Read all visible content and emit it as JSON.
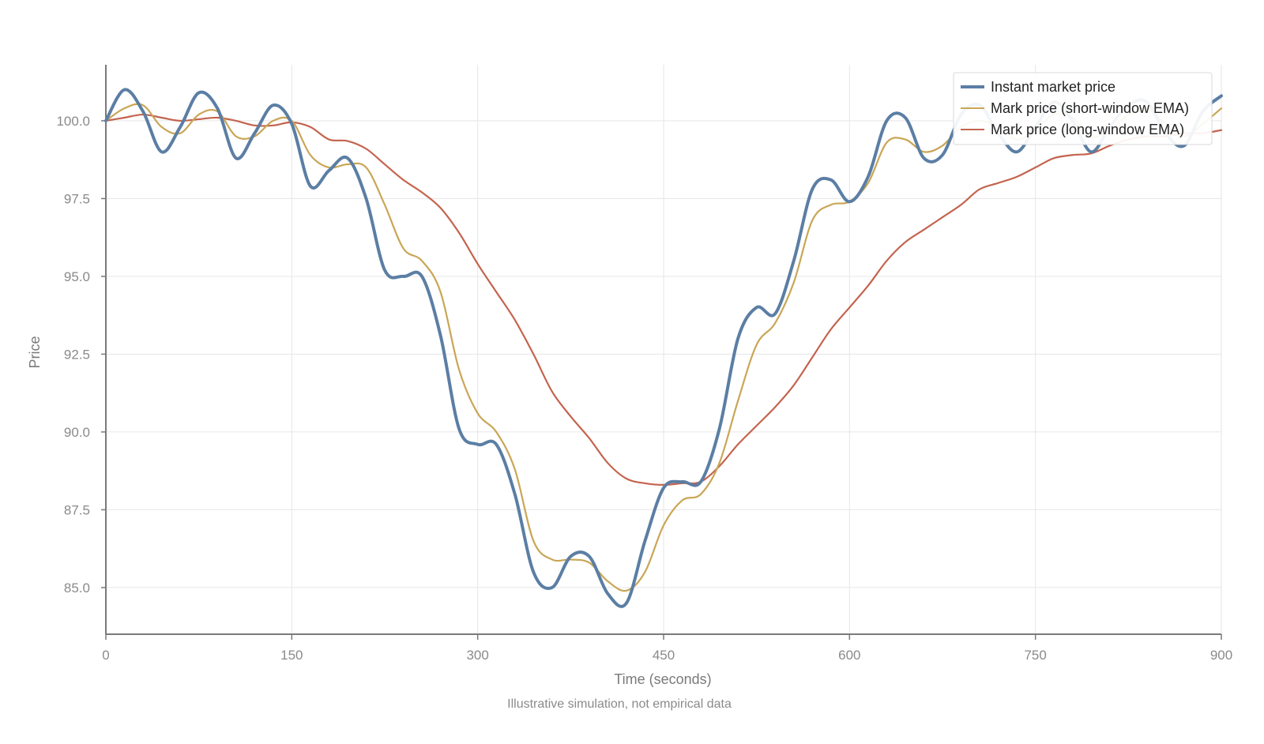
{
  "chart_data": {
    "type": "line",
    "title": "",
    "xlabel": "Time (seconds)",
    "ylabel": "Price",
    "caption": "Illustrative simulation, not empirical data",
    "xlim": [
      0,
      900
    ],
    "ylim": [
      83.5,
      101.8
    ],
    "x_ticks": [
      0,
      150,
      300,
      450,
      600,
      750,
      900
    ],
    "x_tick_labels": [
      "0",
      "150",
      "300",
      "450",
      "600",
      "750",
      "900"
    ],
    "y_ticks": [
      85.0,
      87.5,
      90.0,
      92.5,
      95.0,
      97.5,
      100.0
    ],
    "y_tick_labels": [
      "85.0",
      "87.5",
      "90.0",
      "92.5",
      "95.0",
      "97.5",
      "100.0"
    ],
    "grid": true,
    "legend_position": "top-right",
    "x": [
      0,
      15,
      30,
      45,
      60,
      75,
      90,
      105,
      120,
      135,
      150,
      165,
      180,
      195,
      210,
      225,
      240,
      255,
      270,
      285,
      300,
      315,
      330,
      345,
      360,
      375,
      390,
      405,
      420,
      435,
      450,
      465,
      480,
      495,
      510,
      525,
      540,
      555,
      570,
      585,
      600,
      615,
      630,
      645,
      660,
      675,
      690,
      705,
      720,
      735,
      750,
      765,
      780,
      795,
      810,
      825,
      840,
      855,
      870,
      885,
      900
    ],
    "series": [
      {
        "name": "Instant market price",
        "color": "#5b7ea4",
        "values": [
          100.0,
          101.0,
          100.3,
          99.0,
          99.8,
          100.9,
          100.4,
          98.8,
          99.6,
          100.5,
          99.9,
          97.9,
          98.4,
          98.8,
          97.5,
          95.2,
          95.0,
          95.0,
          93.1,
          90.1,
          89.6,
          89.6,
          88.0,
          85.5,
          85.0,
          86.0,
          86.0,
          84.8,
          84.5,
          86.5,
          88.2,
          88.4,
          88.4,
          90.1,
          93.0,
          94.0,
          93.8,
          95.5,
          97.8,
          98.1,
          97.4,
          98.2,
          100.0,
          100.1,
          98.8,
          98.9,
          100.2,
          100.5,
          99.6,
          99.0,
          99.8,
          100.6,
          100.0,
          99.0,
          99.8,
          100.5,
          100.6,
          99.6,
          99.2,
          100.3,
          100.8
        ]
      },
      {
        "name": "Mark price (short-window EMA)",
        "color": "#c9a656",
        "values": [
          100.0,
          100.4,
          100.5,
          99.8,
          99.6,
          100.2,
          100.3,
          99.5,
          99.5,
          100.0,
          100.0,
          98.9,
          98.5,
          98.6,
          98.5,
          97.3,
          95.9,
          95.5,
          94.5,
          92.0,
          90.6,
          90.0,
          88.8,
          86.5,
          85.9,
          85.9,
          85.8,
          85.2,
          84.9,
          85.5,
          87.0,
          87.8,
          88.0,
          89.0,
          91.0,
          92.8,
          93.5,
          94.8,
          96.8,
          97.3,
          97.4,
          98.0,
          99.3,
          99.4,
          99.0,
          99.2,
          99.8,
          100.0,
          99.8,
          99.4,
          99.7,
          100.2,
          100.1,
          99.5,
          99.7,
          100.2,
          100.4,
          99.9,
          99.5,
          99.9,
          100.4
        ]
      },
      {
        "name": "Mark price (long-window EMA)",
        "color": "#c4644e",
        "values": [
          100.0,
          100.1,
          100.2,
          100.1,
          100.0,
          100.05,
          100.1,
          100.0,
          99.85,
          99.85,
          99.95,
          99.8,
          99.4,
          99.35,
          99.1,
          98.6,
          98.1,
          97.7,
          97.2,
          96.4,
          95.4,
          94.5,
          93.6,
          92.5,
          91.3,
          90.5,
          89.8,
          89.0,
          88.5,
          88.35,
          88.3,
          88.35,
          88.4,
          88.9,
          89.6,
          90.2,
          90.8,
          91.5,
          92.4,
          93.3,
          94.0,
          94.7,
          95.5,
          96.1,
          96.5,
          96.9,
          97.3,
          97.8,
          98.0,
          98.2,
          98.5,
          98.8,
          98.9,
          98.95,
          99.2,
          99.4,
          99.5,
          99.5,
          99.6,
          99.6,
          99.7
        ]
      }
    ]
  }
}
